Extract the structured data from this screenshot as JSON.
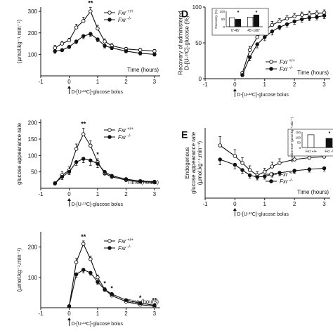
{
  "chart_data": [
    {
      "id": "A",
      "type": "line",
      "panel_letter": "",
      "ylabel": "(µmol.kg⁻¹.min⁻¹)",
      "xlabel": "Time (hours)",
      "annotation": "D-[U-¹³C]-glucose bolus",
      "xlim": [
        -1,
        3.2
      ],
      "ylim": [
        0,
        320
      ],
      "yticks": [
        100,
        200,
        300
      ],
      "xticks": [
        -1,
        0,
        1,
        2,
        3
      ],
      "x": [
        -0.5,
        -0.25,
        0,
        0.25,
        0.5,
        0.75,
        1,
        1.25,
        1.5,
        2,
        2.5,
        3
      ],
      "series": [
        {
          "name": "Fxr +/+",
          "marker": "open",
          "values": [
            130,
            150,
            165,
            225,
            255,
            300,
            220,
            160,
            140,
            125,
            120,
            115
          ],
          "errors": [
            12,
            10,
            10,
            15,
            18,
            18,
            15,
            12,
            10,
            8,
            8,
            8
          ]
        },
        {
          "name": "Fxr -/-",
          "marker": "filled",
          "values": [
            115,
            120,
            135,
            160,
            185,
            195,
            170,
            140,
            130,
            115,
            105,
            100
          ],
          "errors": [
            10,
            8,
            8,
            10,
            12,
            12,
            12,
            10,
            8,
            8,
            8,
            8
          ]
        }
      ],
      "stars": [
        {
          "x": 0.75,
          "label": "**"
        }
      ]
    },
    {
      "id": "B",
      "type": "line",
      "panel_letter": "",
      "ylabel": "glucose appearance rate",
      "xlabel": "Time (hours)",
      "annotation": "D-[U-¹³C]-glucose bolus",
      "xlim": [
        -1,
        3.2
      ],
      "ylim": [
        0,
        210
      ],
      "yticks": [
        50,
        100,
        150,
        200
      ],
      "xticks": [
        -1,
        0,
        1,
        2,
        3
      ],
      "x": [
        -0.5,
        -0.25,
        0,
        0.25,
        0.5,
        0.75,
        1,
        1.25,
        1.5,
        2,
        2.5,
        3
      ],
      "series": [
        {
          "name": "Fxr +/+",
          "marker": "open",
          "values": [
            15,
            40,
            55,
            120,
            165,
            130,
            80,
            45,
            35,
            25,
            20,
            18
          ],
          "errors": [
            5,
            10,
            10,
            15,
            18,
            15,
            10,
            8,
            6,
            5,
            5,
            4
          ]
        },
        {
          "name": "Fxr -/-",
          "marker": "filled",
          "values": [
            15,
            35,
            50,
            80,
            90,
            85,
            75,
            50,
            38,
            28,
            22,
            20
          ],
          "errors": [
            5,
            8,
            8,
            10,
            12,
            15,
            12,
            8,
            6,
            5,
            5,
            4
          ]
        }
      ],
      "stars": [
        {
          "x": 0.5,
          "label": "**"
        },
        {
          "x": 1.0,
          "label": "*"
        }
      ]
    },
    {
      "id": "C",
      "type": "line",
      "panel_letter": "",
      "ylabel": "(µmol.kg⁻¹.min⁻¹)",
      "xlabel": "Time (hours)",
      "annotation": "D-[U-¹³C]-glucose bolus",
      "xlim": [
        -1,
        3.2
      ],
      "ylim": [
        0,
        250
      ],
      "yticks": [
        100,
        200
      ],
      "xticks": [
        -1,
        0,
        1,
        2,
        3
      ],
      "x": [
        0,
        0.25,
        0.5,
        0.75,
        1,
        1.25,
        1.5,
        2,
        2.5,
        3
      ],
      "series": [
        {
          "name": "Fxr +/+",
          "marker": "open",
          "values": [
            5,
            150,
            210,
            160,
            100,
            60,
            40,
            20,
            10,
            5
          ],
          "errors": [
            2,
            12,
            10,
            10,
            8,
            6,
            5,
            4,
            3,
            2
          ]
        },
        {
          "name": "Fxr -/-",
          "marker": "filled",
          "values": [
            5,
            110,
            125,
            115,
            85,
            60,
            45,
            25,
            15,
            8
          ],
          "errors": [
            2,
            10,
            10,
            8,
            8,
            6,
            5,
            4,
            3,
            2
          ]
        }
      ],
      "stars": [
        {
          "x": 0.5,
          "label": "**"
        },
        {
          "x": 1.25,
          "label": "*"
        },
        {
          "x": 1.5,
          "label": "*"
        },
        {
          "x": 2.5,
          "label": "*"
        },
        {
          "x": 3.0,
          "label": "**"
        }
      ]
    },
    {
      "id": "D",
      "type": "line",
      "panel_letter": "D",
      "ylabel": "Recovery of administered\nD-[U-¹³C]-glucose (%)",
      "xlabel": "Time (hours)",
      "annotation": "D-[U-¹³C]-glucose bolus",
      "xlim": [
        -1,
        3.2
      ],
      "ylim": [
        0,
        100
      ],
      "yticks": [
        0,
        50,
        100
      ],
      "xticks": [
        -1,
        0,
        1,
        2,
        3
      ],
      "x": [
        0.25,
        0.5,
        0.75,
        1,
        1.25,
        1.5,
        1.75,
        2,
        2.25,
        2.5,
        2.75,
        3
      ],
      "series": [
        {
          "name": "Fxr +/+",
          "marker": "open",
          "values": [
            8,
            40,
            58,
            68,
            75,
            80,
            84,
            87,
            89,
            90,
            91,
            92
          ],
          "errors": [
            2,
            5,
            5,
            5,
            5,
            4,
            4,
            4,
            4,
            4,
            4,
            4
          ]
        },
        {
          "name": "Fxr -/-",
          "marker": "filled",
          "values": [
            5,
            30,
            48,
            58,
            66,
            72,
            76,
            80,
            83,
            85,
            86,
            88
          ],
          "errors": [
            2,
            5,
            5,
            5,
            5,
            4,
            4,
            4,
            4,
            4,
            4,
            4
          ]
        }
      ],
      "stars": [
        {
          "x": 0.75,
          "label": "*"
        },
        {
          "x": 1.0,
          "label": "*"
        }
      ],
      "inset": {
        "ylabel": "Recovery (%)",
        "ytick_labels": [
          "0",
          "50",
          "100"
        ],
        "categories": [
          "0'-45'",
          "45'-180'"
        ],
        "ylim": [
          0,
          100
        ],
        "series": [
          {
            "name": "Fxr +/+",
            "values": [
              58,
              62
            ]
          },
          {
            "name": "Fxr -/-",
            "values": [
              48,
              76
            ]
          }
        ],
        "stars": [
          "*",
          "*"
        ]
      }
    },
    {
      "id": "E",
      "type": "line",
      "panel_letter": "E",
      "ylabel": "Endogenous\nglucose appearance rate\n(µmol.kg⁻¹.min⁻¹)",
      "xlabel": "Time (hours)",
      "annotation": "D-[U-¹³C]-glucose bolus",
      "xlim": [
        -1,
        3.2
      ],
      "ylim": [
        0,
        200
      ],
      "yticks": [],
      "xticks": [
        -1,
        0,
        1,
        2,
        3
      ],
      "x": [
        -0.5,
        0,
        0.25,
        0.5,
        0.75,
        1,
        1.25,
        1.5,
        2,
        2.5,
        3
      ],
      "series": [
        {
          "name": "Fxr +/+",
          "marker": "open",
          "values": [
            150,
            120,
            100,
            80,
            65,
            75,
            90,
            100,
            110,
            115,
            118
          ],
          "errors": [
            25,
            18,
            15,
            12,
            10,
            10,
            12,
            12,
            12,
            12,
            12
          ]
        },
        {
          "name": "Fxr -/-",
          "marker": "filled",
          "values": [
            110,
            95,
            80,
            65,
            60,
            62,
            68,
            72,
            78,
            82,
            85
          ],
          "errors": [
            15,
            12,
            10,
            8,
            8,
            8,
            8,
            8,
            8,
            8,
            8
          ]
        }
      ],
      "stars": [],
      "inset": {
        "ylabel": "Baseline EGP\n(µmol.kg⁻¹.min⁻¹)",
        "ytick_labels": [
          "0",
          "50",
          "100",
          "150"
        ],
        "categories": [
          "Fxr +/+",
          "Fxr -/-"
        ],
        "ylim": [
          0,
          160
        ],
        "series": [
          {
            "name": "",
            "values": [
              132,
              95
            ]
          }
        ],
        "stars": [
          "*"
        ]
      }
    }
  ]
}
